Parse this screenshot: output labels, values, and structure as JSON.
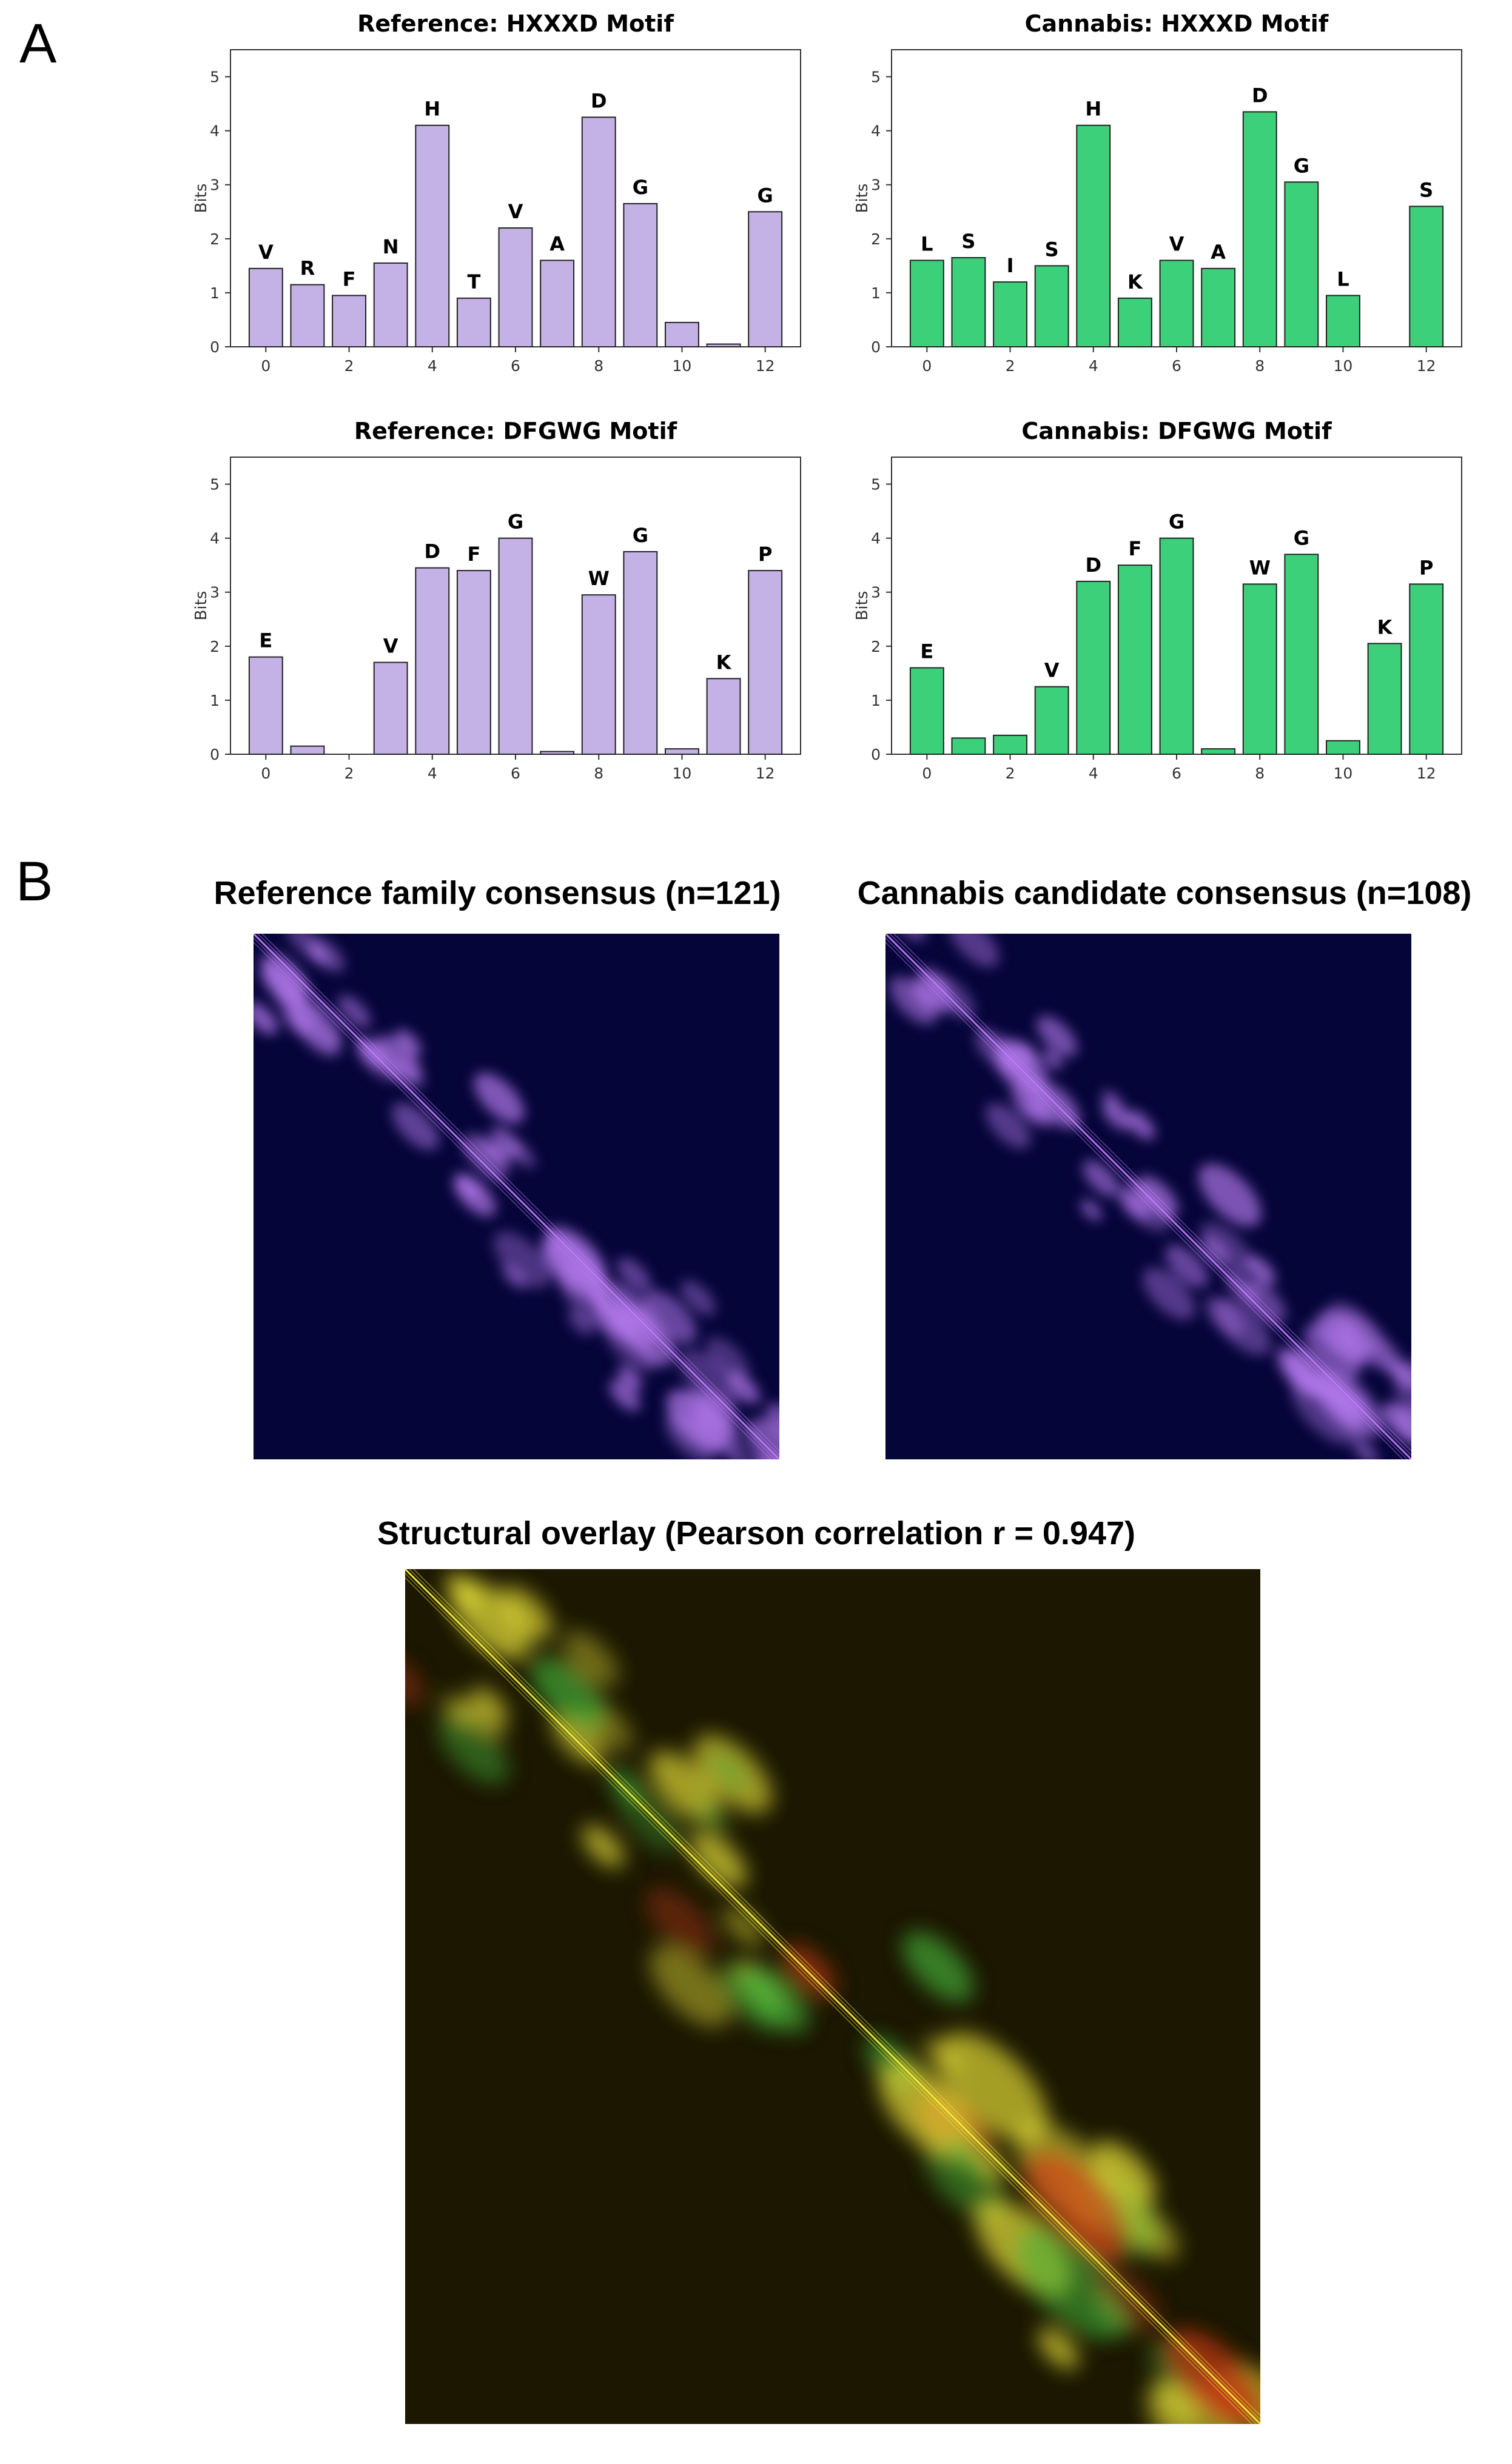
{
  "panels": {
    "a": "A",
    "b": "B"
  },
  "colors": {
    "reference": "#c4b2e6",
    "cannabis": "#3dd07b",
    "heatmap_bg": "#06053a",
    "heatmap_diag": "#b97cf2",
    "overlay_bg": "#1b1700",
    "overlay_diag": "#f2ea3c",
    "overlay_red": "#c83a14",
    "overlay_green": "#45b43a"
  },
  "chart_data": [
    {
      "type": "bar",
      "title": "Reference: HXXXD Motif",
      "ylabel": "Bits",
      "ylim": [
        0,
        5.5
      ],
      "yticks": [
        0,
        1,
        2,
        3,
        4,
        5
      ],
      "xticks": [
        0,
        2,
        4,
        6,
        8,
        10,
        12
      ],
      "x": [
        0,
        1,
        2,
        3,
        4,
        5,
        6,
        7,
        8,
        9,
        10,
        11,
        12
      ],
      "values": [
        1.45,
        1.15,
        0.95,
        1.55,
        4.1,
        0.9,
        2.2,
        1.6,
        4.25,
        2.65,
        0.45,
        0.05,
        2.5
      ],
      "labels": [
        "V",
        "R",
        "F",
        "N",
        "H",
        "T",
        "V",
        "A",
        "D",
        "G",
        "",
        "",
        "G"
      ],
      "color": "reference"
    },
    {
      "type": "bar",
      "title": "Cannabis: HXXXD Motif",
      "ylabel": "Bits",
      "ylim": [
        0,
        5.5
      ],
      "yticks": [
        0,
        1,
        2,
        3,
        4,
        5
      ],
      "xticks": [
        0,
        2,
        4,
        6,
        8,
        10,
        12
      ],
      "x": [
        0,
        1,
        2,
        3,
        4,
        5,
        6,
        7,
        8,
        9,
        10,
        12
      ],
      "values": [
        1.6,
        1.65,
        1.2,
        1.5,
        4.1,
        0.9,
        1.6,
        1.45,
        4.35,
        3.05,
        0.95,
        2.6
      ],
      "labels": [
        "L",
        "S",
        "I",
        "S",
        "H",
        "K",
        "V",
        "A",
        "D",
        "G",
        "L",
        "S"
      ],
      "color": "cannabis"
    },
    {
      "type": "bar",
      "title": "Reference: DFGWG Motif",
      "ylabel": "Bits",
      "ylim": [
        0,
        5.5
      ],
      "yticks": [
        0,
        1,
        2,
        3,
        4,
        5
      ],
      "xticks": [
        0,
        2,
        4,
        6,
        8,
        10,
        12
      ],
      "x": [
        0,
        1,
        3,
        4,
        5,
        6,
        7,
        8,
        9,
        10,
        11,
        12
      ],
      "values": [
        1.8,
        0.15,
        1.7,
        3.45,
        3.4,
        4.0,
        0.05,
        2.95,
        3.75,
        0.1,
        1.4,
        3.4
      ],
      "labels": [
        "E",
        "",
        "V",
        "D",
        "F",
        "G",
        "",
        "W",
        "G",
        "",
        "K",
        "P"
      ],
      "color": "reference"
    },
    {
      "type": "bar",
      "title": "Cannabis: DFGWG Motif",
      "ylabel": "Bits",
      "ylim": [
        0,
        5.5
      ],
      "yticks": [
        0,
        1,
        2,
        3,
        4,
        5
      ],
      "xticks": [
        0,
        2,
        4,
        6,
        8,
        10,
        12
      ],
      "x": [
        0,
        1,
        2,
        3,
        4,
        5,
        6,
        7,
        8,
        9,
        10,
        11,
        12
      ],
      "values": [
        1.6,
        0.3,
        0.35,
        1.25,
        3.2,
        3.5,
        4.0,
        0.1,
        3.15,
        3.7,
        0.25,
        2.05,
        3.15
      ],
      "labels": [
        "E",
        "",
        "",
        "V",
        "D",
        "F",
        "G",
        "",
        "W",
        "G",
        "",
        "K",
        "P"
      ],
      "color": "cannabis"
    },
    {
      "type": "heatmap",
      "title": "Reference family consensus (n=121)"
    },
    {
      "type": "heatmap",
      "title": "Cannabis candidate consensus (n=108)"
    },
    {
      "type": "heatmap",
      "title": "Structural overlay (Pearson correlation r = 0.947)"
    }
  ]
}
